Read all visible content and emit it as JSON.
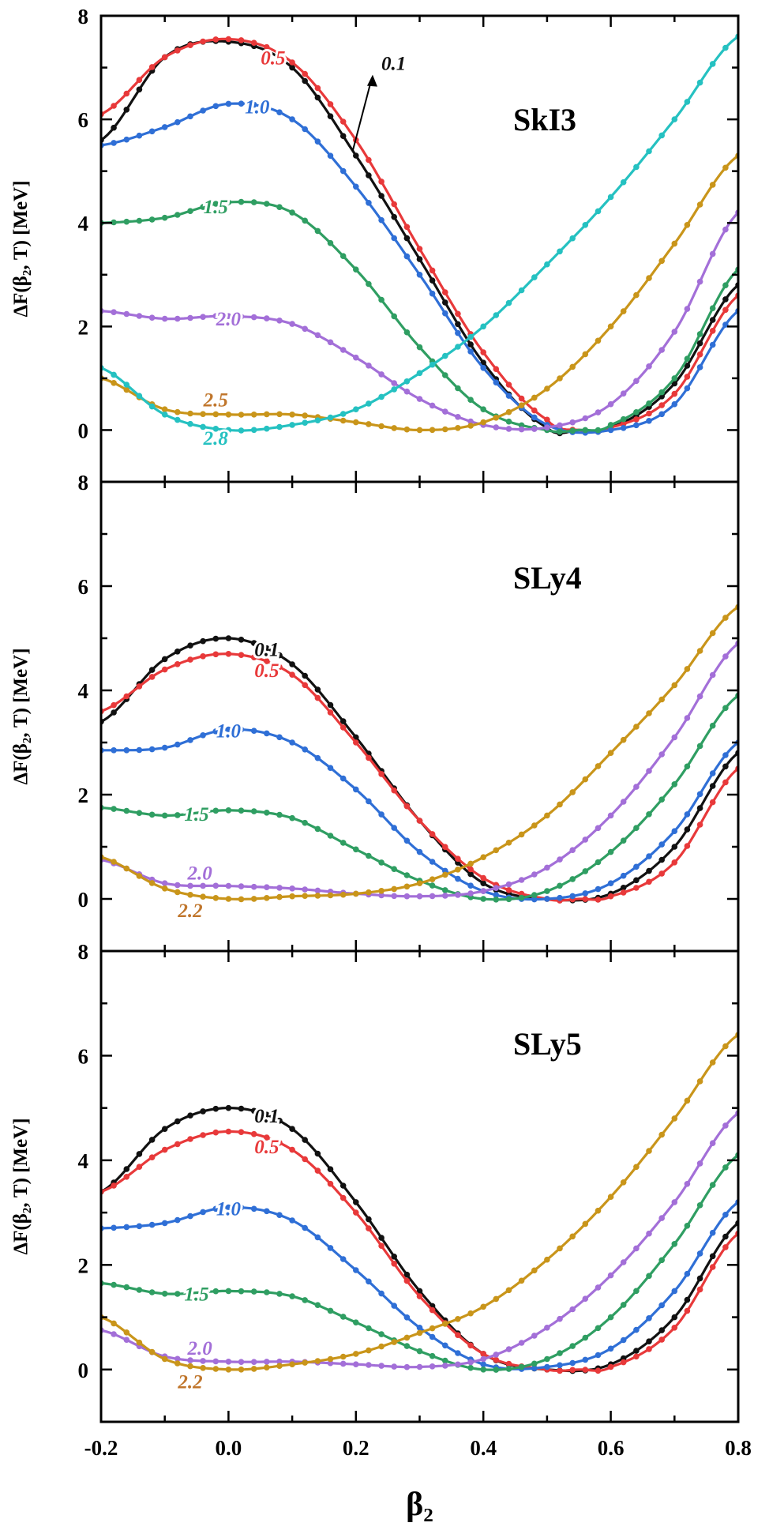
{
  "figure": {
    "xlabel": "β₂",
    "ylabel": "ΔF(β₂, T) [MeV]",
    "xticks": [
      "-0.2",
      "0.0",
      "0.2",
      "0.4",
      "0.6",
      "0.8"
    ],
    "xlim": [
      -0.2,
      0.8
    ],
    "colors": {
      "0.1": "#111111",
      "0.5": "#e8393a",
      "1.0": "#2f6fd6",
      "1.5": "#2f9e62",
      "2.0": "#a36fd8",
      "2.2": "#c9951a",
      "2.5": "#c9951a",
      "2.8": "#25c1c1",
      "label_2.2": "#c0762c",
      "label_2.5": "#c0762c"
    }
  },
  "chart_data": [
    {
      "type": "line",
      "title": "SkI3",
      "xlabel": "β₂",
      "ylabel": "ΔF(β₂, T) [MeV]",
      "xlim": [
        -0.2,
        0.8
      ],
      "ylim": [
        -1.0,
        8.0
      ],
      "yticks": [
        "0",
        "2",
        "4",
        "6",
        "8"
      ],
      "series": [
        {
          "name": "0.1",
          "label": "0.1",
          "x": [
            -0.2,
            -0.1,
            0.0,
            0.1,
            0.2,
            0.3,
            0.4,
            0.5,
            0.55,
            0.6,
            0.7,
            0.8
          ],
          "y": [
            5.6,
            7.2,
            7.5,
            7.0,
            5.3,
            3.3,
            1.3,
            0.05,
            0.0,
            0.05,
            0.9,
            2.8
          ]
        },
        {
          "name": "0.5",
          "label": "0.5",
          "x": [
            -0.2,
            -0.1,
            0.0,
            0.1,
            0.2,
            0.3,
            0.4,
            0.5,
            0.55,
            0.6,
            0.7,
            0.8
          ],
          "y": [
            6.1,
            7.2,
            7.55,
            7.1,
            5.6,
            3.5,
            1.5,
            0.2,
            0.0,
            0.05,
            0.7,
            2.6
          ]
        },
        {
          "name": "1.0",
          "label": "1.0",
          "x": [
            -0.2,
            -0.1,
            0.0,
            0.1,
            0.2,
            0.3,
            0.4,
            0.5,
            0.6,
            0.7,
            0.8
          ],
          "y": [
            5.5,
            5.85,
            6.3,
            6.0,
            4.7,
            3.0,
            1.2,
            0.1,
            0.0,
            0.5,
            2.3
          ]
        },
        {
          "name": "1.5",
          "label": "1.5",
          "x": [
            -0.2,
            -0.1,
            0.0,
            0.1,
            0.2,
            0.3,
            0.4,
            0.5,
            0.55,
            0.6,
            0.7,
            0.8
          ],
          "y": [
            4.0,
            4.1,
            4.4,
            4.2,
            3.1,
            1.6,
            0.4,
            0.0,
            0.0,
            0.1,
            1.0,
            3.1
          ]
        },
        {
          "name": "2.0",
          "label": "2.0",
          "x": [
            -0.2,
            -0.1,
            0.0,
            0.1,
            0.2,
            0.3,
            0.4,
            0.5,
            0.6,
            0.7,
            0.8
          ],
          "y": [
            2.3,
            2.15,
            2.2,
            2.05,
            1.4,
            0.6,
            0.1,
            0.05,
            0.5,
            1.9,
            4.2
          ]
        },
        {
          "name": "2.5",
          "label": "2.5",
          "x": [
            -0.2,
            -0.1,
            0.0,
            0.1,
            0.2,
            0.3,
            0.4,
            0.5,
            0.6,
            0.7,
            0.8
          ],
          "y": [
            1.0,
            0.4,
            0.3,
            0.3,
            0.15,
            0.0,
            0.15,
            0.8,
            2.0,
            3.6,
            5.3
          ]
        },
        {
          "name": "2.8",
          "label": "2.8",
          "x": [
            -0.2,
            -0.1,
            0.0,
            0.1,
            0.2,
            0.3,
            0.4,
            0.5,
            0.6,
            0.7,
            0.8
          ],
          "y": [
            1.2,
            0.3,
            0.0,
            0.1,
            0.4,
            1.1,
            2.0,
            3.2,
            4.5,
            6.0,
            7.6
          ]
        }
      ],
      "annotations": [
        {
          "text": "0.1",
          "series": "0.1",
          "arrow": true
        }
      ]
    },
    {
      "type": "line",
      "title": "SLy4",
      "xlabel": "β₂",
      "ylabel": "ΔF(β₂, T) [MeV]",
      "xlim": [
        -0.2,
        0.8
      ],
      "ylim": [
        -1.0,
        8.0
      ],
      "yticks": [
        "0",
        "2",
        "4",
        "6",
        "8"
      ],
      "series": [
        {
          "name": "0.1",
          "label": "0.1",
          "x": [
            -0.2,
            -0.1,
            0.0,
            0.1,
            0.2,
            0.3,
            0.4,
            0.5,
            0.6,
            0.7,
            0.8
          ],
          "y": [
            3.4,
            4.6,
            5.0,
            4.5,
            3.1,
            1.5,
            0.3,
            0.0,
            0.1,
            1.0,
            2.8
          ]
        },
        {
          "name": "0.5",
          "label": "0.5",
          "x": [
            -0.2,
            -0.1,
            0.0,
            0.1,
            0.2,
            0.3,
            0.4,
            0.5,
            0.55,
            0.6,
            0.7,
            0.8
          ],
          "y": [
            3.6,
            4.4,
            4.7,
            4.3,
            3.0,
            1.5,
            0.4,
            0.0,
            0.0,
            0.05,
            0.7,
            2.5
          ]
        },
        {
          "name": "1.0",
          "label": "1.0",
          "x": [
            -0.2,
            -0.1,
            0.0,
            0.1,
            0.2,
            0.3,
            0.4,
            0.5,
            0.6,
            0.7,
            0.8
          ],
          "y": [
            2.85,
            2.9,
            3.25,
            3.0,
            2.1,
            0.9,
            0.15,
            0.0,
            0.3,
            1.3,
            3.0
          ]
        },
        {
          "name": "1.5",
          "label": "1.5",
          "x": [
            -0.2,
            -0.1,
            0.0,
            0.1,
            0.2,
            0.3,
            0.4,
            0.5,
            0.6,
            0.7,
            0.8
          ],
          "y": [
            1.75,
            1.6,
            1.7,
            1.55,
            0.95,
            0.35,
            0.0,
            0.15,
            0.9,
            2.2,
            3.9
          ]
        },
        {
          "name": "2.0",
          "label": "2.0",
          "x": [
            -0.2,
            -0.1,
            0.0,
            0.1,
            0.2,
            0.3,
            0.4,
            0.5,
            0.6,
            0.7,
            0.8
          ],
          "y": [
            0.75,
            0.3,
            0.25,
            0.2,
            0.1,
            0.05,
            0.15,
            0.6,
            1.6,
            3.1,
            4.9
          ]
        },
        {
          "name": "2.2",
          "label": "2.2",
          "x": [
            -0.2,
            -0.1,
            0.0,
            0.1,
            0.2,
            0.3,
            0.4,
            0.5,
            0.6,
            0.7,
            0.8
          ],
          "y": [
            0.8,
            0.2,
            0.0,
            0.05,
            0.1,
            0.3,
            0.8,
            1.6,
            2.8,
            4.1,
            5.6
          ]
        }
      ]
    },
    {
      "type": "line",
      "title": "SLy5",
      "xlabel": "β₂",
      "ylabel": "ΔF(β₂, T) [MeV]",
      "xlim": [
        -0.2,
        0.8
      ],
      "ylim": [
        -1.0,
        8.0
      ],
      "yticks": [
        "0",
        "2",
        "4",
        "6",
        "8"
      ],
      "series": [
        {
          "name": "0.1",
          "label": "0.1",
          "x": [
            -0.2,
            -0.1,
            0.0,
            0.1,
            0.2,
            0.3,
            0.4,
            0.5,
            0.6,
            0.7,
            0.8
          ],
          "y": [
            3.4,
            4.6,
            5.0,
            4.6,
            3.2,
            1.5,
            0.3,
            0.0,
            0.1,
            1.0,
            2.8
          ]
        },
        {
          "name": "0.5",
          "label": "0.5",
          "x": [
            -0.2,
            -0.1,
            0.0,
            0.1,
            0.2,
            0.3,
            0.4,
            0.5,
            0.55,
            0.6,
            0.7,
            0.8
          ],
          "y": [
            3.4,
            4.2,
            4.55,
            4.2,
            3.0,
            1.4,
            0.3,
            0.0,
            0.0,
            0.05,
            0.8,
            2.6
          ]
        },
        {
          "name": "1.0",
          "label": "1.0",
          "x": [
            -0.2,
            -0.1,
            0.0,
            0.1,
            0.2,
            0.3,
            0.4,
            0.5,
            0.6,
            0.7,
            0.8
          ],
          "y": [
            2.7,
            2.8,
            3.1,
            2.85,
            1.9,
            0.8,
            0.1,
            0.05,
            0.4,
            1.5,
            3.2
          ]
        },
        {
          "name": "1.5",
          "label": "1.5",
          "x": [
            -0.2,
            -0.1,
            0.0,
            0.1,
            0.2,
            0.3,
            0.4,
            0.5,
            0.6,
            0.7,
            0.8
          ],
          "y": [
            1.65,
            1.45,
            1.5,
            1.4,
            0.9,
            0.35,
            0.0,
            0.2,
            1.0,
            2.4,
            4.1
          ]
        },
        {
          "name": "2.0",
          "label": "2.0",
          "x": [
            -0.2,
            -0.1,
            0.0,
            0.1,
            0.2,
            0.3,
            0.4,
            0.5,
            0.6,
            0.7,
            0.8
          ],
          "y": [
            0.75,
            0.25,
            0.15,
            0.15,
            0.1,
            0.05,
            0.2,
            0.8,
            1.8,
            3.2,
            4.9
          ]
        },
        {
          "name": "2.2",
          "label": "2.2",
          "x": [
            -0.2,
            -0.1,
            0.0,
            0.1,
            0.2,
            0.3,
            0.4,
            0.5,
            0.6,
            0.7,
            0.8
          ],
          "y": [
            1.0,
            0.2,
            0.0,
            0.1,
            0.3,
            0.7,
            1.2,
            2.1,
            3.3,
            4.8,
            6.4
          ]
        }
      ]
    }
  ]
}
